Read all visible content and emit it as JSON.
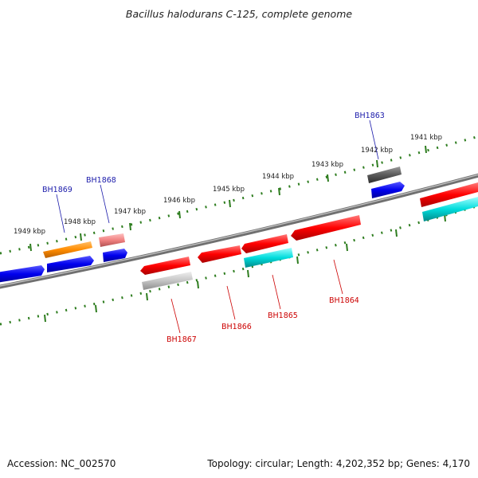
{
  "title": "Bacillus halodurans C-125, complete genome",
  "footer": {
    "accession": "Accession: NC_002570",
    "summary": "Topology: circular; Length: 4,202,352 bp; Genes: 4,170"
  },
  "colors": {
    "backbone": "#7a7a7a",
    "ruler": "#2e7d1f",
    "forward_label": "#1a1aaa",
    "reverse_label": "#cc0000"
  },
  "ruler_ticks": [
    {
      "label": "1949 kbp"
    },
    {
      "label": "1948 kbp"
    },
    {
      "label": "1947 kbp"
    },
    {
      "label": "1946 kbp"
    },
    {
      "label": "1945 kbp"
    },
    {
      "label": "1944 kbp"
    },
    {
      "label": "1943 kbp"
    },
    {
      "label": "1942 kbp"
    },
    {
      "label": "1941 kbp"
    }
  ],
  "labeled_genes": [
    {
      "name": "BH1869",
      "strand": "forward",
      "color": "#ff8c00"
    },
    {
      "name": "BH1868",
      "strand": "forward",
      "color": "#f08080"
    },
    {
      "name": "BH1867",
      "strand": "reverse",
      "color": "#ff0000"
    },
    {
      "name": "BH1866",
      "strand": "reverse",
      "color": "#ff0000"
    },
    {
      "name": "BH1865",
      "strand": "reverse",
      "color": "#ff0000"
    },
    {
      "name": "BH1864",
      "strand": "reverse",
      "color": "#ff0000"
    },
    {
      "name": "BH1863",
      "strand": "forward",
      "color": "#555555"
    }
  ]
}
